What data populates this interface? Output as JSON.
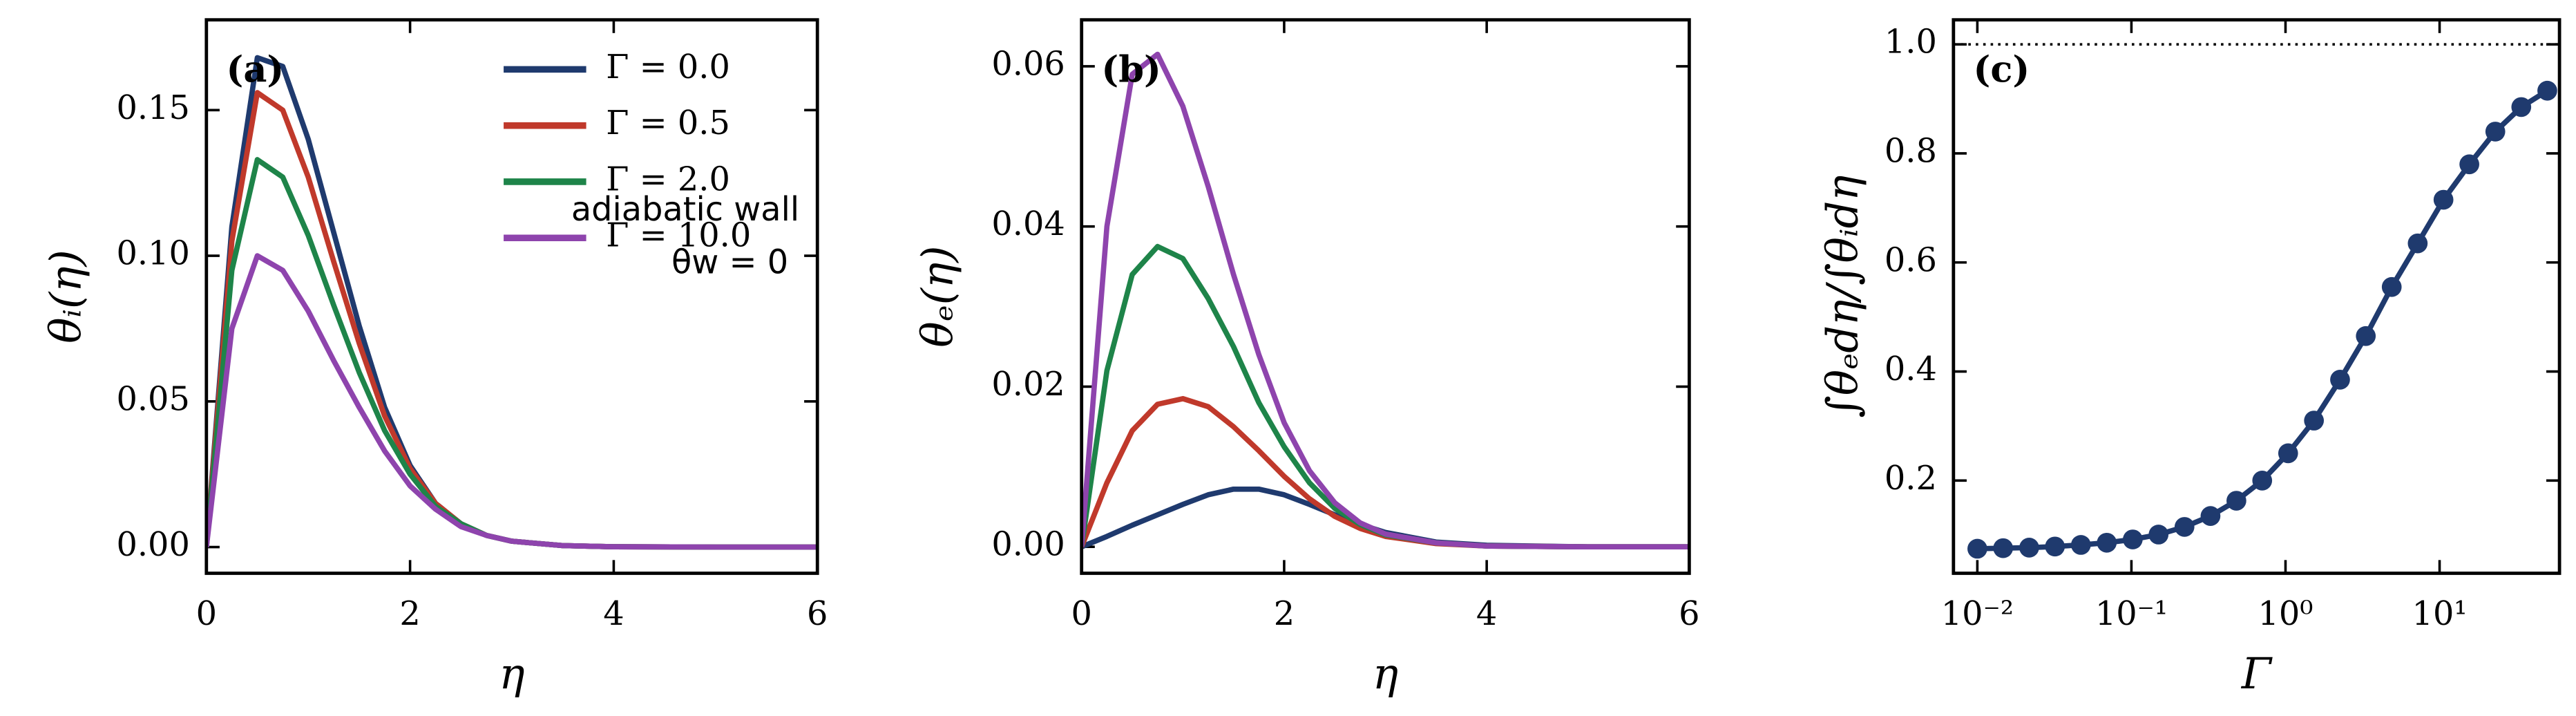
{
  "chart_data": [
    {
      "type": "line",
      "panel_label": "(a)",
      "xlabel": "η",
      "ylabel": "θᵢ(η)",
      "x": [
        0,
        0.25,
        0.5,
        0.75,
        1,
        1.25,
        1.5,
        1.75,
        2,
        2.25,
        2.5,
        2.75,
        3,
        3.5,
        4,
        5,
        6
      ],
      "series": [
        {
          "name": "Γ = 0.0",
          "color": "#1f3a6e",
          "values": [
            0,
            0.11,
            0.168,
            0.165,
            0.14,
            0.108,
            0.076,
            0.048,
            0.028,
            0.015,
            0.008,
            0.004,
            0.002,
            0.0005,
            0.0001,
            0,
            0
          ]
        },
        {
          "name": "Γ = 0.5",
          "color": "#c0392b",
          "values": [
            0,
            0.105,
            0.156,
            0.15,
            0.127,
            0.098,
            0.07,
            0.045,
            0.027,
            0.015,
            0.008,
            0.004,
            0.002,
            0.0005,
            0.0001,
            0,
            0
          ]
        },
        {
          "name": "Γ = 2.0",
          "color": "#1e8449",
          "values": [
            0,
            0.095,
            0.133,
            0.127,
            0.107,
            0.083,
            0.06,
            0.04,
            0.025,
            0.014,
            0.008,
            0.004,
            0.002,
            0.0005,
            0.0001,
            0,
            0
          ]
        },
        {
          "name": "Γ = 10.0",
          "color": "#8e44ad",
          "values": [
            0,
            0.075,
            0.1,
            0.095,
            0.081,
            0.064,
            0.048,
            0.033,
            0.021,
            0.013,
            0.007,
            0.004,
            0.002,
            0.0005,
            0.0001,
            0,
            0
          ]
        }
      ],
      "legend": "upper right",
      "annotations": [
        "adiabatic wall",
        "θw = 0"
      ],
      "xlim": [
        0,
        6
      ],
      "xticks": [
        0,
        2,
        4,
        6
      ],
      "ylim": [
        -0.009,
        0.181
      ],
      "yticks": [
        {
          "value": 0,
          "label": "0.00"
        },
        {
          "value": 0.05,
          "label": "0.05"
        },
        {
          "value": 0.1,
          "label": "0.10"
        },
        {
          "value": 0.15,
          "label": "0.15"
        }
      ]
    },
    {
      "type": "line",
      "panel_label": "(b)",
      "xlabel": "η",
      "ylabel": "θₑ(η)",
      "x": [
        0,
        0.25,
        0.5,
        0.75,
        1,
        1.25,
        1.5,
        1.75,
        2,
        2.25,
        2.5,
        2.75,
        3,
        3.5,
        4,
        5,
        6
      ],
      "series": [
        {
          "color": "#1f3a6e",
          "values": [
            0,
            0.0013,
            0.0027,
            0.004,
            0.0053,
            0.0065,
            0.0072,
            0.0072,
            0.0065,
            0.0053,
            0.004,
            0.0028,
            0.0018,
            0.0006,
            0.0002,
            0,
            0
          ]
        },
        {
          "color": "#c0392b",
          "values": [
            0,
            0.008,
            0.0145,
            0.0178,
            0.0185,
            0.0175,
            0.015,
            0.012,
            0.0088,
            0.006,
            0.0038,
            0.0023,
            0.0013,
            0.0004,
            0.0001,
            0,
            0
          ]
        },
        {
          "color": "#1e8449",
          "values": [
            0,
            0.022,
            0.034,
            0.0375,
            0.036,
            0.031,
            0.025,
            0.018,
            0.0125,
            0.008,
            0.0048,
            0.0028,
            0.0015,
            0.0005,
            0.0001,
            0,
            0
          ]
        },
        {
          "color": "#8e44ad",
          "values": [
            0,
            0.04,
            0.059,
            0.0615,
            0.055,
            0.045,
            0.034,
            0.024,
            0.0155,
            0.0095,
            0.0055,
            0.003,
            0.0016,
            0.0005,
            0.0001,
            0,
            0
          ]
        }
      ],
      "xlim": [
        0,
        6
      ],
      "xticks": [
        0,
        2,
        4,
        6
      ],
      "ylim": [
        -0.0033,
        0.0658
      ],
      "yticks": [
        {
          "value": 0,
          "label": "0.00"
        },
        {
          "value": 0.02,
          "label": "0.02"
        },
        {
          "value": 0.04,
          "label": "0.04"
        },
        {
          "value": 0.06,
          "label": "0.06"
        }
      ]
    },
    {
      "type": "line",
      "panel_label": "(c)",
      "xlabel": "Γ",
      "ylabel": "∫θₑdη/∫θᵢdη",
      "markers": true,
      "xscale": "log",
      "x": [
        0.01,
        0.0147,
        0.0217,
        0.0319,
        0.047,
        0.0692,
        0.102,
        0.15,
        0.221,
        0.326,
        0.48,
        0.706,
        1.04,
        1.53,
        2.26,
        3.32,
        4.89,
        7.21,
        10.6,
        15.6,
        23.0,
        33.9,
        50.0
      ],
      "series": [
        {
          "color": "#1f3a6e",
          "values": [
            0.075,
            0.076,
            0.077,
            0.079,
            0.082,
            0.086,
            0.092,
            0.101,
            0.115,
            0.135,
            0.163,
            0.2,
            0.25,
            0.31,
            0.385,
            0.465,
            0.555,
            0.635,
            0.715,
            0.78,
            0.84,
            0.885,
            0.915
          ]
        }
      ],
      "hline": 1.0,
      "xlim": [
        0.007,
        60
      ],
      "xticks": [
        {
          "value": 0.01,
          "label": "10⁻²"
        },
        {
          "value": 0.1,
          "label": "10⁻¹"
        },
        {
          "value": 1,
          "label": "10⁰"
        },
        {
          "value": 10,
          "label": "10¹"
        }
      ],
      "ylim": [
        0.03,
        1.045
      ],
      "yticks": [
        0.2,
        0.4,
        0.6,
        0.8,
        {
          "value": 1.0,
          "label": "1.0"
        }
      ]
    }
  ]
}
